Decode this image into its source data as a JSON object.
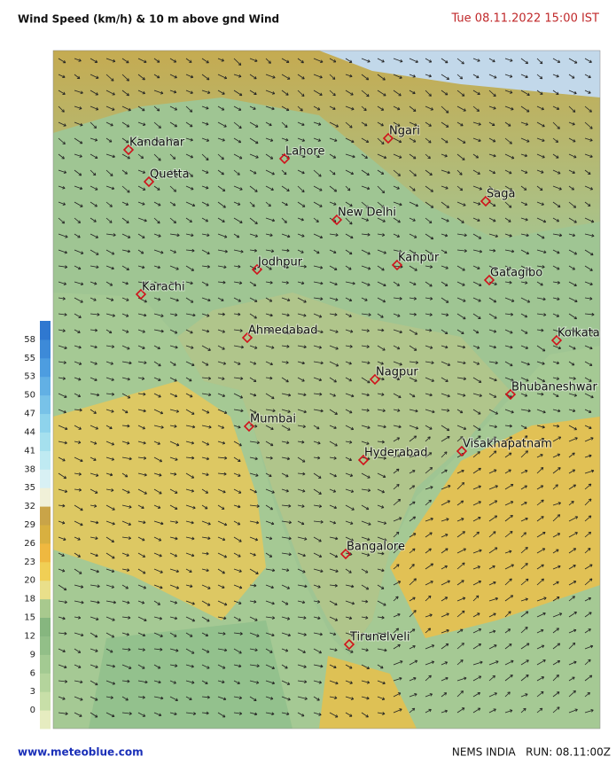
{
  "header": {
    "title": "Wind Speed (km/h)  & 10 m above gnd Wind",
    "date": "Tue 08.11.2022  15:00 IST"
  },
  "legend": {
    "ticks": [
      0,
      3,
      6,
      9,
      12,
      15,
      18,
      20,
      23,
      26,
      29,
      32,
      35,
      38,
      41,
      44,
      47,
      50,
      53,
      55,
      58
    ],
    "colors": [
      "#e6ecc0",
      "#c8dfa8",
      "#b4d49c",
      "#a3ca92",
      "#92bf88",
      "#86b67f",
      "#a8c98e",
      "#e9df8a",
      "#f0cf55",
      "#efb840",
      "#d8b040",
      "#c9a448",
      "#f0f0d8",
      "#d8f0f4",
      "#bfeaf2",
      "#a5e0ee",
      "#8ed3ec",
      "#78c2e8",
      "#62b0e4",
      "#4d9de0",
      "#3d8ad8",
      "#2f78d0"
    ]
  },
  "cities": [
    "Kandahar",
    "Quetta",
    "Lahore",
    "Ngari",
    "New Delhi",
    "Saga",
    "Jodhpur",
    "Kanpur",
    "Karachi",
    "Gatagibo",
    "Ahmedabad",
    "Kolkata",
    "Nagpur",
    "Bhubaneshwar",
    "Mumbai",
    "Hyderabad",
    "Visakhapatnam",
    "Bangalore",
    "Tirunelveli"
  ],
  "footer": {
    "site": "www.meteoblue.com",
    "run": "NEMS INDIA   RUN: 08.11:00Z"
  }
}
